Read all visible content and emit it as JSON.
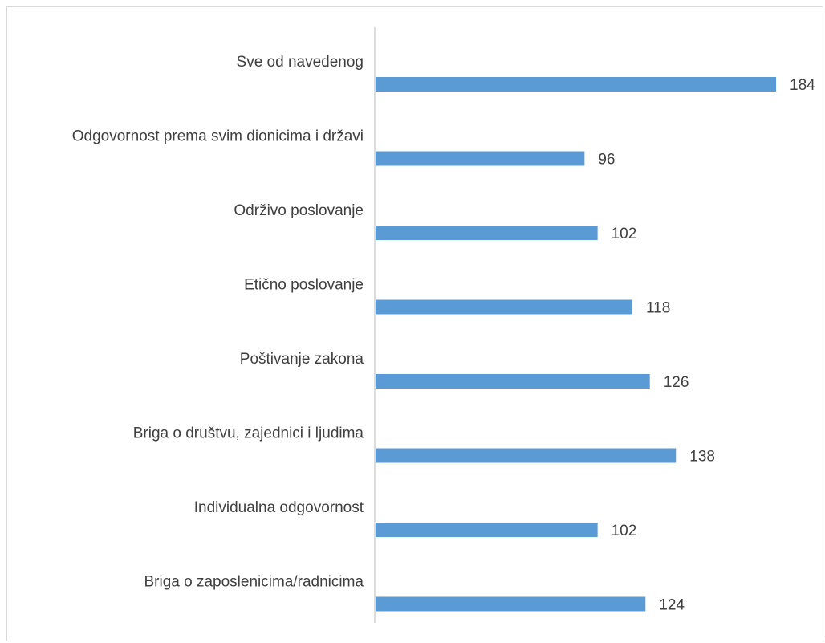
{
  "chart_data": {
    "type": "bar",
    "orientation": "horizontal",
    "categories": [
      "Sve od navedenog",
      "Odgovornost prema svim dionicima i državi",
      "Održivo poslovanje",
      "Etično poslovanje",
      "Poštivanje zakona",
      "Briga o društvu, zajednici i ljudima",
      "Individualna odgovornost",
      "Briga o zaposlenicima/radnicima"
    ],
    "values": [
      184,
      96,
      102,
      118,
      126,
      138,
      102,
      124
    ],
    "xlim": [
      0,
      190
    ],
    "bar_color": "#5b9bd5",
    "data_labels": true,
    "grid": false,
    "legend": "none"
  }
}
